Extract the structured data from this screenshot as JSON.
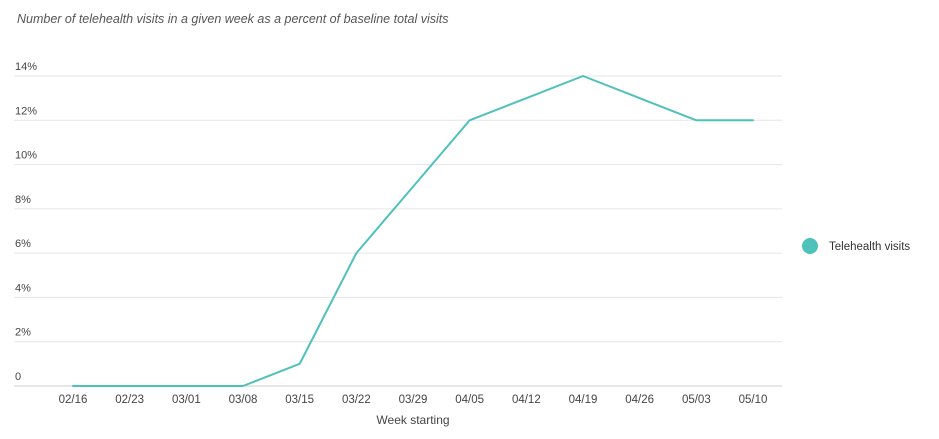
{
  "chart_data": {
    "type": "line",
    "subtitle": "Number of telehealth visits in a given week as a percent of baseline total visits",
    "xlabel": "Week starting",
    "ylabel": "",
    "categories": [
      "02/16",
      "02/23",
      "03/01",
      "03/08",
      "03/15",
      "03/22",
      "03/29",
      "04/05",
      "04/12",
      "04/19",
      "04/26",
      "05/03",
      "05/10"
    ],
    "yticks": [
      0,
      2,
      4,
      6,
      8,
      10,
      12,
      14
    ],
    "ytick_labels": [
      "0",
      "2%",
      "4%",
      "6%",
      "8%",
      "10%",
      "12%",
      "14%"
    ],
    "ylim": [
      0,
      14
    ],
    "grid": true,
    "legend_position": "right",
    "series": [
      {
        "name": "Telehealth visits",
        "color": "#4fc1bb",
        "values": [
          0,
          0,
          0,
          0,
          1,
          6,
          9,
          12,
          13,
          14,
          13,
          12,
          12
        ]
      }
    ]
  }
}
